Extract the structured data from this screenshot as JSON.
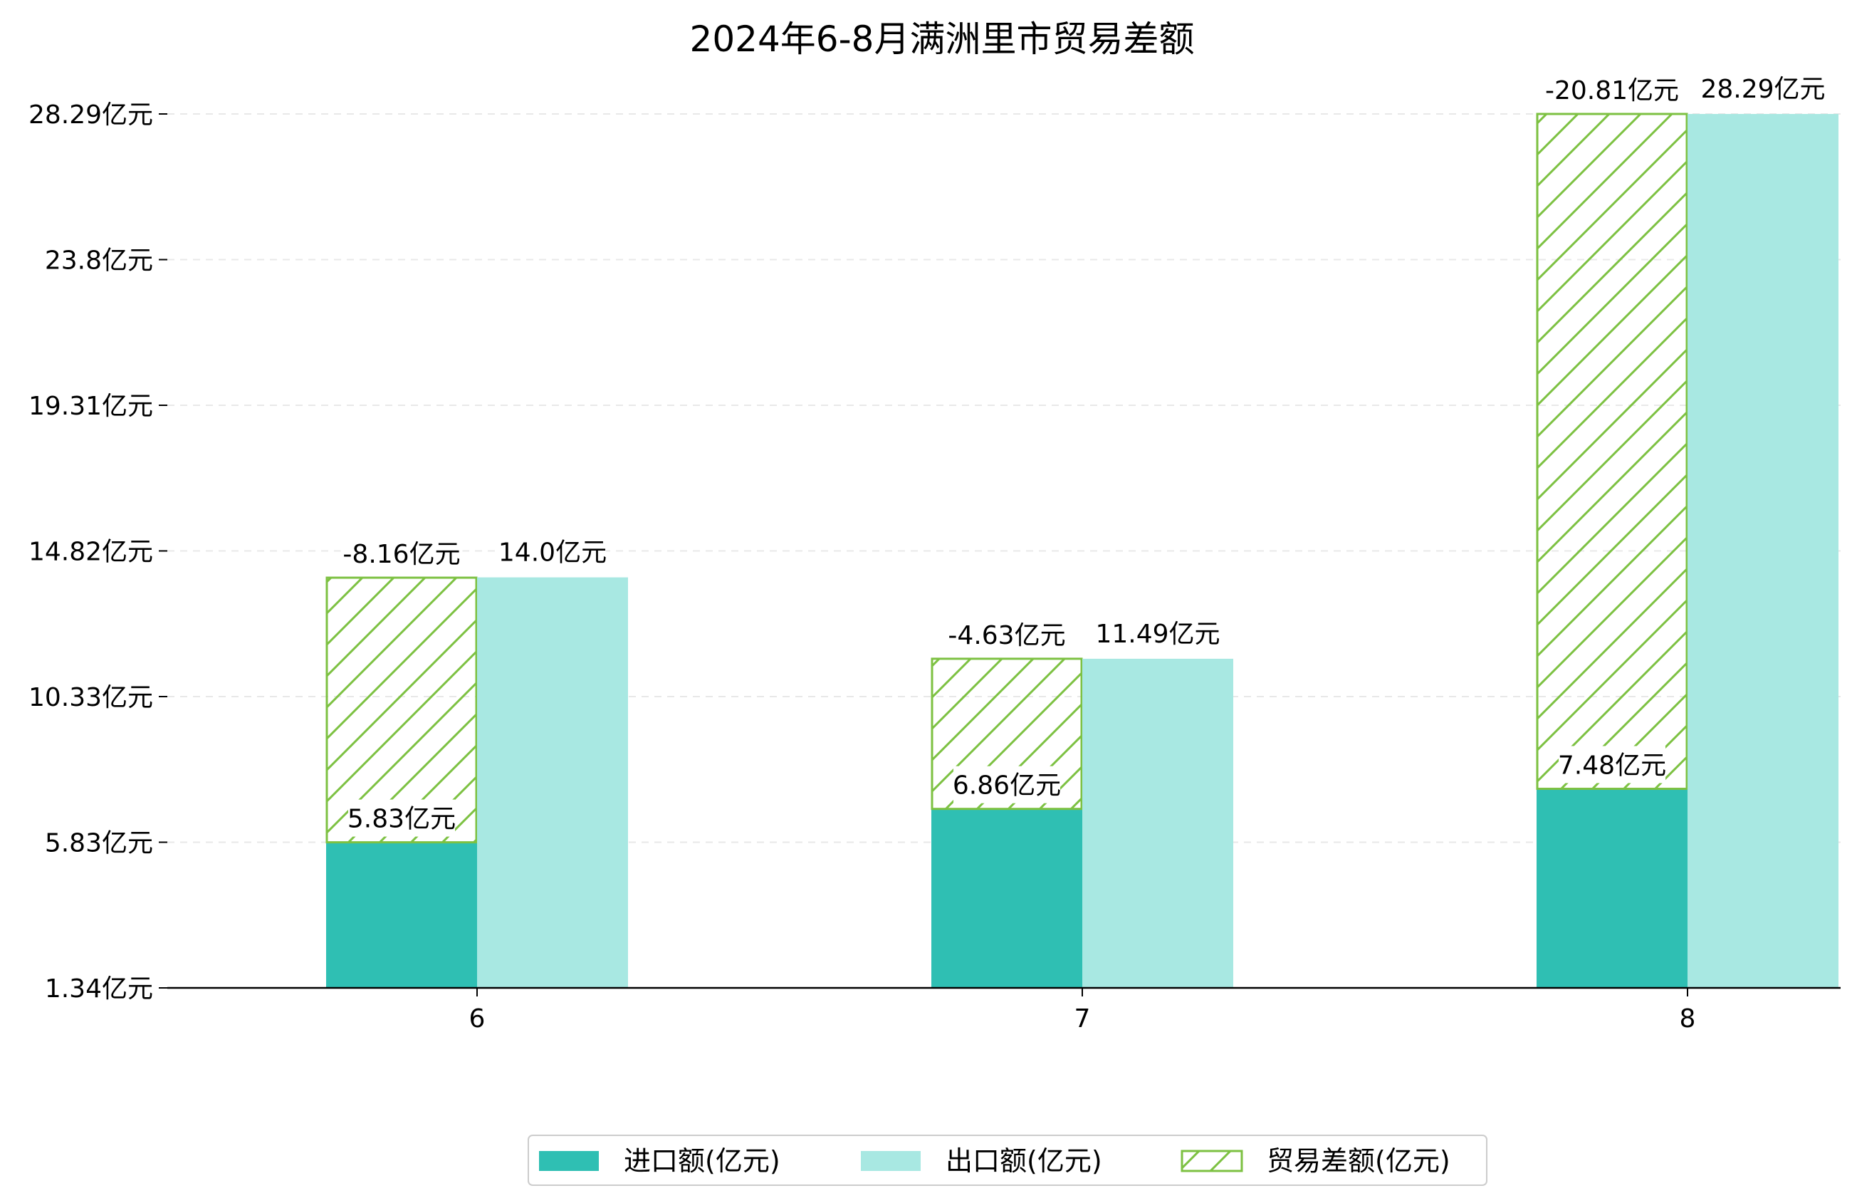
{
  "chart_data": {
    "type": "bar",
    "title": "2024年6-8月满洲里市贸易差额",
    "xlabel": "",
    "ylabel": "",
    "categories": [
      "6",
      "7",
      "8"
    ],
    "y_ticks": [
      "1.34亿元",
      "5.83亿元",
      "10.33亿元",
      "14.82亿元",
      "19.31亿元",
      "23.8亿元",
      "28.29亿元"
    ],
    "ylim": [
      1.34,
      28.29
    ],
    "grid": "horizontal dashed",
    "legend_position": "bottom-center",
    "series": [
      {
        "name": "进口额(亿元)",
        "values": [
          5.83,
          6.86,
          7.48
        ],
        "labels": [
          "5.83亿元",
          "6.86亿元",
          "7.48亿元"
        ],
        "color": "#2fbfb3"
      },
      {
        "name": "出口额(亿元)",
        "values": [
          14.0,
          11.49,
          28.29
        ],
        "labels": [
          "14.0亿元",
          "11.49亿元",
          "28.29亿元"
        ],
        "color": "#a8e8e2"
      },
      {
        "name": "贸易差额(亿元)",
        "values": [
          -8.16,
          -4.63,
          -20.81
        ],
        "labels": [
          "-8.16亿元",
          "-4.63亿元",
          "-20.81亿元"
        ],
        "color": "#7dc142",
        "style": "hatched, stacked on 进口额"
      }
    ]
  }
}
